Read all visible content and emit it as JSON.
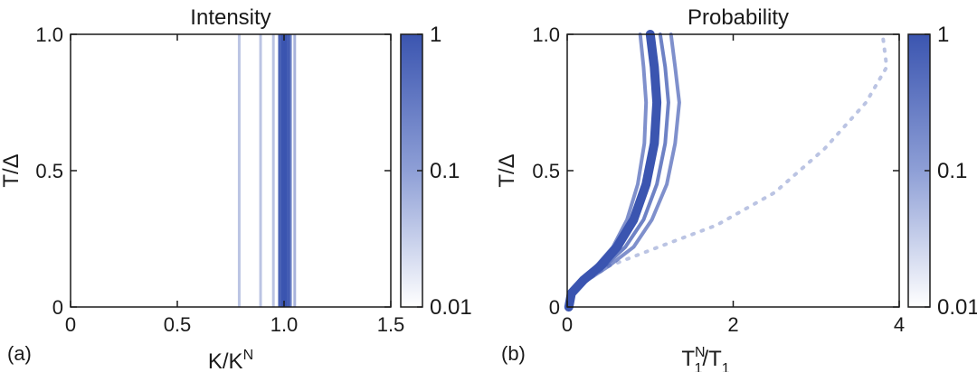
{
  "colors": {
    "accent": "#3b55b0",
    "axis": "#1a1a1a",
    "background": "#ffffff"
  },
  "chart_data": [
    {
      "type": "heatmap",
      "panel_label": "(a)",
      "title": "Intensity",
      "xlabel": {
        "base": "K/K",
        "sup": "N"
      },
      "ylabel": "T/Δ",
      "xlim": [
        0,
        1.5
      ],
      "ylim": [
        0,
        1.0
      ],
      "xticks": [
        0,
        0.5,
        1.0,
        1.5
      ],
      "xtick_labels": [
        "0",
        "0.5",
        "1.0",
        "1.5"
      ],
      "yticks": [
        0,
        0.5,
        1.0
      ],
      "ytick_labels": [
        "0",
        "0.5",
        "1.0"
      ],
      "colorbar": {
        "scale": "log",
        "ticks": [
          1,
          0.1,
          0.01
        ],
        "tick_labels": [
          "1",
          "0.1",
          "0.01"
        ]
      },
      "series": [
        {
          "x": 0.79,
          "intensity": 0.05
        },
        {
          "x": 0.89,
          "intensity": 0.05
        },
        {
          "x": 0.95,
          "intensity": 0.05
        },
        {
          "x": 0.985,
          "intensity": 0.7
        },
        {
          "x": 1.0,
          "intensity": 1.0
        },
        {
          "x": 1.015,
          "intensity": 0.8
        },
        {
          "x": 1.03,
          "intensity": 0.3
        },
        {
          "x": 1.05,
          "intensity": 0.08
        }
      ]
    },
    {
      "type": "heatmap",
      "panel_label": "(b)",
      "title": "Probability",
      "xlabel": {
        "base": "T",
        "sup": "N",
        "sub": "1",
        "tail": "/T",
        "tail_sub": "1"
      },
      "ylabel": "T/Δ",
      "xlim": [
        0,
        4
      ],
      "ylim": [
        0,
        1.0
      ],
      "xticks": [
        0,
        2,
        4
      ],
      "xtick_labels": [
        "0",
        "2",
        "4"
      ],
      "yticks": [
        0,
        0.5,
        1.0
      ],
      "ytick_labels": [
        "0",
        "0.5",
        "1.0"
      ],
      "colorbar": {
        "scale": "log",
        "ticks": [
          1,
          0.1,
          0.01
        ],
        "tick_labels": [
          "1",
          "0.1",
          "0.01"
        ]
      },
      "series": [
        {
          "probability": 1.0,
          "points": [
            [
              0.02,
              0
            ],
            [
              0.05,
              0.05
            ],
            [
              0.2,
              0.1
            ],
            [
              0.4,
              0.15
            ],
            [
              0.6,
              0.22
            ],
            [
              0.8,
              0.32
            ],
            [
              0.95,
              0.45
            ],
            [
              1.05,
              0.6
            ],
            [
              1.08,
              0.75
            ],
            [
              1.05,
              0.88
            ],
            [
              1.0,
              1.0
            ]
          ]
        },
        {
          "probability": 0.3,
          "points": [
            [
              0.02,
              0
            ],
            [
              0.05,
              0.05
            ],
            [
              0.22,
              0.1
            ],
            [
              0.45,
              0.15
            ],
            [
              0.7,
              0.22
            ],
            [
              0.92,
              0.32
            ],
            [
              1.08,
              0.45
            ],
            [
              1.18,
              0.6
            ],
            [
              1.22,
              0.75
            ],
            [
              1.18,
              0.88
            ],
            [
              1.12,
              1.0
            ]
          ]
        },
        {
          "probability": 0.2,
          "points": [
            [
              0.02,
              0
            ],
            [
              0.05,
              0.05
            ],
            [
              0.25,
              0.1
            ],
            [
              0.5,
              0.15
            ],
            [
              0.8,
              0.22
            ],
            [
              1.02,
              0.32
            ],
            [
              1.2,
              0.45
            ],
            [
              1.3,
              0.6
            ],
            [
              1.35,
              0.75
            ],
            [
              1.3,
              0.88
            ],
            [
              1.25,
              1.0
            ]
          ]
        },
        {
          "probability": 0.2,
          "points": [
            [
              0.02,
              0
            ],
            [
              0.04,
              0.05
            ],
            [
              0.18,
              0.1
            ],
            [
              0.35,
              0.15
            ],
            [
              0.55,
              0.22
            ],
            [
              0.72,
              0.32
            ],
            [
              0.85,
              0.45
            ],
            [
              0.93,
              0.6
            ],
            [
              0.95,
              0.75
            ],
            [
              0.92,
              0.88
            ],
            [
              0.88,
              1.0
            ]
          ]
        },
        {
          "probability": 0.05,
          "dashed": true,
          "points": [
            [
              0.02,
              0
            ],
            [
              0.1,
              0.07
            ],
            [
              0.5,
              0.15
            ],
            [
              1.1,
              0.22
            ],
            [
              1.8,
              0.3
            ],
            [
              2.5,
              0.42
            ],
            [
              3.1,
              0.58
            ],
            [
              3.6,
              0.75
            ],
            [
              3.85,
              0.88
            ],
            [
              3.8,
              1.0
            ]
          ]
        }
      ]
    }
  ]
}
